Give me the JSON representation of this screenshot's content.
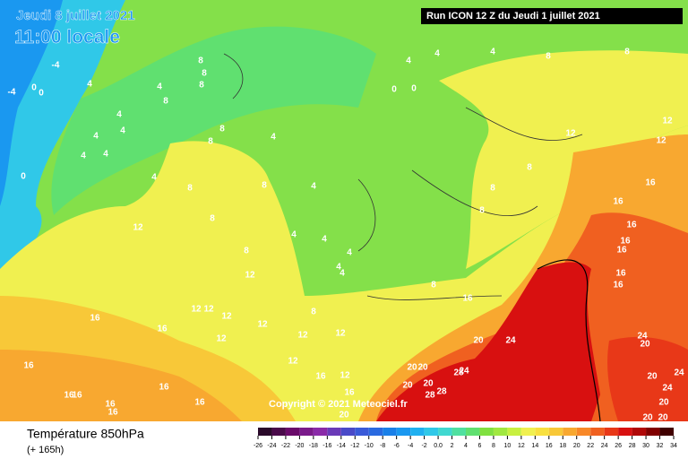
{
  "header": {
    "date": "Jeudi 8 juillet 2021",
    "time": "11:00 locale",
    "run": "Run ICON 12 Z du Jeudi 1 juillet 2021"
  },
  "copyright": "Copyright © 2021 Meteociel.fr",
  "footer": {
    "title": "Température 850hPa",
    "lead": "(+ 165h)"
  },
  "contour_labels": [
    -4,
    -4,
    0,
    0,
    4,
    4,
    8,
    8,
    8,
    8,
    8,
    8,
    4,
    4,
    4,
    4,
    4,
    4,
    0,
    4,
    4,
    0,
    0,
    4,
    8,
    8,
    12,
    12,
    12,
    8,
    8,
    8,
    4,
    4,
    8,
    8,
    8,
    12,
    8,
    4,
    4,
    4,
    4,
    4,
    8,
    16,
    16,
    16,
    16,
    16,
    16,
    16,
    16,
    12,
    12,
    12,
    12,
    12,
    12,
    12,
    12,
    8,
    16,
    16,
    16,
    16,
    16,
    16,
    16,
    16,
    16,
    12,
    16,
    12,
    16,
    20,
    24,
    20,
    20,
    24,
    28,
    20,
    20,
    28,
    28,
    20,
    20,
    24,
    20,
    24,
    24,
    20,
    20,
    20
  ],
  "legend": {
    "ticks": [
      -26,
      -24,
      -22,
      -20,
      -18,
      -16,
      -14,
      -12,
      -10,
      -8,
      -6,
      -4,
      -2,
      {
        "value": 0,
        "label": "0.0"
      },
      2,
      4,
      6,
      8,
      10,
      12,
      14,
      16,
      18,
      20,
      22,
      24,
      26,
      28,
      30,
      32,
      34
    ],
    "colors": [
      "#2a0a2a",
      "#4a0a4a",
      "#6a0a6a",
      "#7a1a8a",
      "#8a2aa8",
      "#6a3ab8",
      "#4a4ac8",
      "#3a5ad8",
      "#2a6ae0",
      "#1a80e8",
      "#1a98f0",
      "#20b0f0",
      "#30c8e8",
      "#40d8d0",
      "#50e0a0",
      "#60e070",
      "#80e040",
      "#a0e840",
      "#c8f040",
      "#f0f050",
      "#f8e040",
      "#f8c838",
      "#f8a830",
      "#f88828",
      "#f06020",
      "#e83818",
      "#d81010",
      "#b00808",
      "#800000",
      "#400000"
    ]
  }
}
